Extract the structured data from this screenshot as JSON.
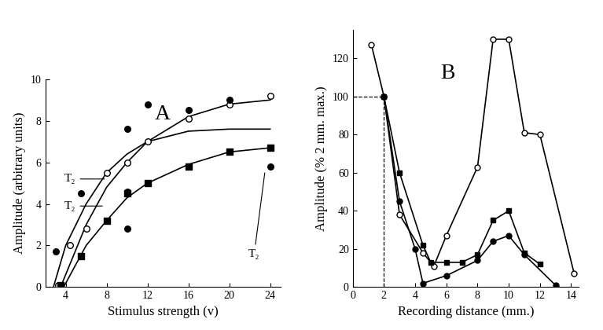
{
  "chart_data": [
    {
      "type": "scatter",
      "panel_label": "A",
      "x_label": "Stimulus strength (v)",
      "y_label": "Amplitude (arbitrary units)",
      "xlim": [
        2,
        25
      ],
      "ylim": [
        0,
        10
      ],
      "xticks": [
        4,
        8,
        12,
        16,
        20,
        24
      ],
      "yticks": [
        0,
        2,
        4,
        6,
        8,
        10
      ],
      "series": [
        {
          "type": "scatter",
          "color": "#000000",
          "marker": "open circle",
          "x": [
            3.3,
            4.4,
            6,
            8,
            10,
            12,
            16,
            20,
            24
          ],
          "values": [
            0.1,
            2.0,
            2.8,
            5.5,
            6.0,
            7.0,
            8.1,
            8.8,
            9.2
          ]
        },
        {
          "type": "scatter",
          "color": "#000000",
          "marker": "filled circle",
          "x": [
            3,
            5.5,
            10,
            10,
            10,
            12,
            16,
            20,
            24
          ],
          "values": [
            1.7,
            4.5,
            7.6,
            4.6,
            2.8,
            8.8,
            8.5,
            9.0,
            5.8
          ]
        },
        {
          "type": "scatter",
          "color": "#000000",
          "marker": "filled square",
          "x": [
            3.5,
            5.5,
            8,
            10,
            12,
            16,
            20,
            24
          ],
          "values": [
            0.1,
            1.5,
            3.2,
            4.5,
            5.0,
            5.8,
            6.5,
            6.7
          ]
        },
        {
          "type": "line",
          "color": "#000000",
          "line_style": "solid",
          "x": [
            3.5,
            6,
            8,
            10,
            12,
            16,
            20,
            24
          ],
          "values": [
            0,
            3.0,
            4.8,
            6.0,
            7.0,
            8.2,
            8.8,
            9.0
          ]
        },
        {
          "type": "line",
          "color": "#000000",
          "line_style": "solid",
          "x": [
            2.8,
            4,
            6,
            8,
            10,
            12,
            16,
            20,
            24
          ],
          "values": [
            0,
            2.0,
            4.0,
            5.5,
            6.4,
            7.0,
            7.5,
            7.6,
            7.6
          ]
        },
        {
          "type": "line",
          "color": "#000000",
          "line_style": "solid",
          "x": [
            3.8,
            6,
            8,
            10,
            12,
            16,
            20,
            24
          ],
          "values": [
            0,
            2.0,
            3.2,
            4.3,
            5.0,
            5.9,
            6.5,
            6.7
          ]
        }
      ],
      "annotations": [
        {
          "text": "T₂",
          "x": 8,
          "y": 5.2,
          "text_x": 5.0,
          "text_y": 5.2
        },
        {
          "text": "T₂",
          "x": 7.8,
          "y": 3.9,
          "text_x": 5.0,
          "text_y": 3.9
        },
        {
          "text": "T₂",
          "x": 23.5,
          "y": 5.6,
          "text_x": 23.0,
          "text_y": 1.6
        }
      ]
    },
    {
      "type": "line",
      "panel_label": "B",
      "x_label": "Recording distance (mm.)",
      "y_label": "Amplitude (% 2 mm. max.)",
      "xlim": [
        0,
        14.5
      ],
      "ylim": [
        0,
        135
      ],
      "xticks": [
        0,
        2,
        4,
        6,
        8,
        10,
        12,
        14
      ],
      "yticks": [
        0,
        20,
        40,
        60,
        80,
        100,
        120
      ],
      "series": [
        {
          "type": "line",
          "color": "#000000",
          "marker": "open circle",
          "line_style": "solid",
          "x": [
            1.2,
            2,
            3,
            4.5,
            5.2,
            6,
            8,
            9,
            10,
            11,
            12,
            14.2
          ],
          "values": [
            127,
            100,
            38,
            18,
            11,
            27,
            63,
            130,
            130,
            81,
            80,
            7
          ]
        },
        {
          "type": "line",
          "color": "#000000",
          "marker": "filled square",
          "line_style": "solid",
          "x": [
            2,
            3,
            4.5,
            5,
            6,
            7,
            8,
            9,
            10,
            11,
            12
          ],
          "values": [
            100,
            60,
            22,
            13,
            13,
            13,
            17,
            35,
            40,
            18,
            12
          ]
        },
        {
          "type": "line",
          "color": "#000000",
          "marker": "filled circle",
          "line_style": "solid",
          "x": [
            2,
            3,
            4,
            4.5,
            6,
            8,
            9,
            10,
            11,
            13
          ],
          "values": [
            100,
            45,
            20,
            2,
            6,
            14,
            24,
            27,
            17,
            1
          ]
        }
      ],
      "guides": {
        "x": 2,
        "y": 100,
        "line_style": "dashed"
      }
    }
  ]
}
